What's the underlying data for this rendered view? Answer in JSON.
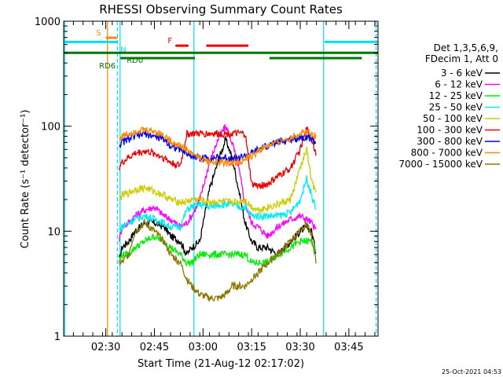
{
  "chart_data": {
    "type": "line",
    "title": "RHESSI Observing Summary Count Rates",
    "xlabel": "Start Time (21-Aug-12 02:17:02)",
    "ylabel": "Count Rate (s⁻¹ detector⁻¹)",
    "yscale": "log",
    "ylim": [
      1,
      1000
    ],
    "xlim_minutes": [
      0,
      97
    ],
    "x_unit": "minutes after 02:17:02",
    "x_ticks": [
      {
        "label": "02:30",
        "t": 13.0
      },
      {
        "label": "02:45",
        "t": 28.0
      },
      {
        "label": "03:00",
        "t": 43.0
      },
      {
        "label": "03:15",
        "t": 58.0
      },
      {
        "label": "03:30",
        "t": 73.0
      },
      {
        "label": "03:45",
        "t": 88.0
      }
    ],
    "y_ticks": [
      {
        "label": "1",
        "v": 1
      },
      {
        "label": "10",
        "v": 10
      },
      {
        "label": "100",
        "v": 100
      },
      {
        "label": "1000",
        "v": 1000
      }
    ],
    "legend_title": [
      "Det 1,3,5,6,9,",
      "FDecim 1, Att 0"
    ],
    "legend_position": "right",
    "timestamp": "25-Oct-2021 04:53",
    "x": [
      0,
      5,
      10,
      15,
      17,
      18,
      20,
      22,
      25,
      28,
      31,
      33,
      36,
      38,
      39.5,
      42,
      45,
      48,
      50,
      52,
      54,
      56,
      58,
      60,
      63,
      66,
      70,
      73,
      75,
      76.5,
      78,
      80,
      83
    ],
    "series": [
      {
        "name": "3 - 6 keV",
        "color": "#000000",
        "values": [
          null,
          null,
          null,
          null,
          5,
          7,
          8,
          10,
          12,
          12,
          11,
          9,
          8,
          6,
          7,
          8,
          25,
          50,
          75,
          50,
          25,
          12,
          8,
          7,
          7,
          6,
          8,
          10,
          11,
          10,
          6,
          null,
          null
        ]
      },
      {
        "name": "6 - 12 keV",
        "color": "#ff00ff",
        "values": [
          null,
          null,
          null,
          null,
          8,
          11,
          12,
          14,
          16,
          17,
          14,
          13,
          11,
          12,
          14,
          20,
          45,
          80,
          100,
          70,
          40,
          18,
          12,
          11,
          9,
          11,
          13,
          14,
          13,
          12,
          10,
          null,
          null
        ]
      },
      {
        "name": "12 - 25 keV",
        "color": "#00ee00",
        "values": [
          null,
          null,
          null,
          null,
          5,
          6,
          6,
          7,
          8,
          9,
          8,
          7,
          6,
          5,
          5,
          6,
          6,
          6,
          6,
          6,
          6,
          6,
          5,
          5,
          5,
          6,
          7,
          8,
          8,
          8,
          6,
          null,
          null
        ]
      },
      {
        "name": "25 - 50 keV",
        "color": "#00eeee",
        "values": [
          null,
          null,
          null,
          null,
          10,
          11,
          12,
          13,
          14,
          13,
          12,
          11,
          11,
          16,
          17,
          18,
          17,
          18,
          18,
          18,
          17,
          17,
          14,
          14,
          14,
          14,
          15,
          20,
          32,
          22,
          16,
          null,
          null
        ]
      },
      {
        "name": "50 - 100 keV",
        "color": "#cccc00",
        "values": [
          null,
          null,
          null,
          null,
          20,
          22,
          23,
          25,
          26,
          24,
          22,
          20,
          19,
          19,
          20,
          20,
          19,
          19,
          19,
          19,
          19,
          20,
          17,
          16,
          17,
          18,
          20,
          40,
          60,
          30,
          22,
          null,
          null
        ]
      },
      {
        "name": "100 - 300 keV",
        "color": "#ee0000",
        "values": [
          null,
          null,
          null,
          null,
          40,
          45,
          50,
          55,
          58,
          55,
          50,
          45,
          42,
          85,
          85,
          85,
          85,
          85,
          85,
          85,
          85,
          85,
          28,
          27,
          28,
          33,
          40,
          60,
          95,
          75,
          55,
          null,
          null
        ]
      },
      {
        "name": "300 - 800 keV",
        "color": "#0000ee",
        "values": [
          null,
          null,
          null,
          null,
          65,
          70,
          75,
          80,
          85,
          80,
          75,
          65,
          60,
          55,
          52,
          50,
          50,
          50,
          50,
          50,
          50,
          52,
          55,
          60,
          65,
          70,
          75,
          78,
          80,
          75,
          70,
          null,
          null
        ]
      },
      {
        "name": "800 - 7000 keV",
        "color": "#ff8800",
        "values": [
          null,
          null,
          null,
          null,
          75,
          80,
          85,
          90,
          92,
          90,
          82,
          72,
          65,
          60,
          55,
          50,
          46,
          45,
          45,
          45,
          46,
          48,
          52,
          58,
          65,
          70,
          78,
          85,
          90,
          85,
          80,
          null,
          null
        ]
      },
      {
        "name": "7000 - 15000 keV",
        "color": "#8b7500",
        "values": [
          null,
          null,
          null,
          null,
          5,
          5,
          6,
          10,
          12,
          10,
          8,
          6,
          5,
          3.5,
          3,
          2.5,
          2.3,
          2.3,
          2.5,
          3,
          3,
          3,
          3.5,
          4,
          5,
          6,
          8,
          10,
          12,
          9,
          5,
          null,
          null
        ]
      }
    ],
    "annotations": [
      {
        "label": "S",
        "color": "#ff8800",
        "t_start": 13.0,
        "t_end": 16.5,
        "level": 695
      },
      {
        "label": "N",
        "color": "#00ddff",
        "t_start": 0,
        "t_end": 16.5,
        "level": 635
      },
      {
        "label": "N",
        "color": "#00ddff",
        "t_start": 80.5,
        "t_end": 97,
        "level": 635
      },
      {
        "label": "F",
        "color": "#ee0000",
        "t_start": 34.5,
        "t_end": 38.5,
        "level": 585
      },
      {
        "label": "F",
        "color": "#ee0000",
        "t_start": 44,
        "t_end": 57,
        "level": 585
      },
      {
        "label": "RD0",
        "color": "#007700",
        "t_start": 0,
        "t_end": 97,
        "level": 500
      },
      {
        "label": "RD6",
        "color": "#007700",
        "t_start": 17.5,
        "t_end": 40.5,
        "level": 445
      },
      {
        "label": "RD6",
        "color": "#007700",
        "t_start": 63.5,
        "t_end": 92,
        "level": 445
      }
    ],
    "vertical_markers": [
      {
        "t": 0.3,
        "color": "#00ddff",
        "style": "solid"
      },
      {
        "t": 13.5,
        "color": "#ff8800",
        "style": "solid"
      },
      {
        "t": 16.6,
        "color": "#00ddff",
        "style": "dashed"
      },
      {
        "t": 17.4,
        "color": "#00ddff",
        "style": "solid"
      },
      {
        "t": 40.2,
        "color": "#00ddff",
        "style": "solid"
      },
      {
        "t": 80.2,
        "color": "#00ddff",
        "style": "solid"
      },
      {
        "t": 96.4,
        "color": "#00ddff",
        "style": "dashed"
      }
    ]
  }
}
